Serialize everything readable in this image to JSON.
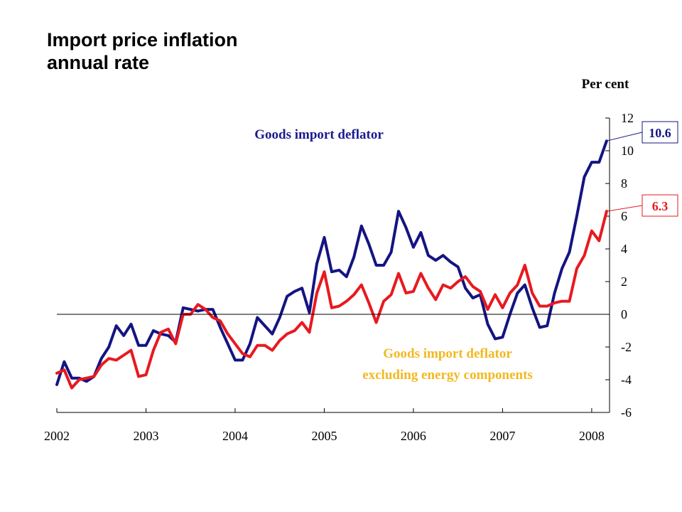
{
  "title_line1": "Import price inflation",
  "title_line2": "annual rate",
  "chart_data": {
    "type": "line",
    "unit_label": "Per cent",
    "y_axis": {
      "min": -6,
      "max": 12,
      "ticks": [
        -6,
        -4,
        -2,
        0,
        2,
        4,
        6,
        8,
        10,
        12
      ],
      "tick_labels": [
        "-6",
        "-4",
        "-2",
        "0",
        "2",
        "4",
        "6",
        "8",
        "10",
        "12"
      ]
    },
    "x_axis": {
      "min": 2002,
      "max": 2008.2,
      "ticks": [
        2002,
        2003,
        2004,
        2005,
        2006,
        2007,
        2008
      ],
      "tick_labels": [
        "2002",
        "2003",
        "2004",
        "2005",
        "2006",
        "2007",
        "2008"
      ]
    },
    "series": [
      {
        "name": "Goods import deflator",
        "color": "#141482",
        "x": [
          2002.0,
          2002.083,
          2002.167,
          2002.25,
          2002.333,
          2002.417,
          2002.5,
          2002.583,
          2002.667,
          2002.75,
          2002.833,
          2002.917,
          2003.0,
          2003.083,
          2003.167,
          2003.25,
          2003.333,
          2003.417,
          2003.5,
          2003.583,
          2003.667,
          2003.75,
          2003.833,
          2003.917,
          2004.0,
          2004.083,
          2004.167,
          2004.25,
          2004.333,
          2004.417,
          2004.5,
          2004.583,
          2004.667,
          2004.75,
          2004.833,
          2004.917,
          2005.0,
          2005.083,
          2005.167,
          2005.25,
          2005.333,
          2005.417,
          2005.5,
          2005.583,
          2005.667,
          2005.75,
          2005.833,
          2005.917,
          2006.0,
          2006.083,
          2006.167,
          2006.25,
          2006.333,
          2006.417,
          2006.5,
          2006.583,
          2006.667,
          2006.75,
          2006.833,
          2006.917,
          2007.0,
          2007.083,
          2007.167,
          2007.25,
          2007.333,
          2007.417,
          2007.5,
          2007.583,
          2007.667,
          2007.75,
          2007.833,
          2007.917,
          2008.0,
          2008.083,
          2008.167
        ],
        "values": [
          -4.3,
          -2.9,
          -3.9,
          -3.9,
          -4.1,
          -3.8,
          -2.7,
          -2.0,
          -0.7,
          -1.3,
          -0.6,
          -1.9,
          -1.9,
          -1.0,
          -1.2,
          -1.3,
          -1.7,
          0.4,
          0.3,
          0.2,
          0.3,
          0.3,
          -0.8,
          -1.8,
          -2.8,
          -2.8,
          -1.8,
          -0.2,
          -0.7,
          -1.2,
          -0.2,
          1.1,
          1.4,
          1.6,
          0.1,
          3.1,
          4.7,
          2.6,
          2.7,
          2.3,
          3.5,
          5.4,
          4.3,
          3.0,
          3.0,
          3.8,
          6.3,
          5.3,
          4.1,
          5.0,
          3.6,
          3.3,
          3.6,
          3.2,
          2.9,
          1.6,
          1.0,
          1.2,
          -0.6,
          -1.5,
          -1.4,
          0.0,
          1.3,
          1.8,
          0.4,
          -0.8,
          -0.7,
          1.3,
          2.8,
          3.8,
          6.0,
          8.4,
          9.3,
          9.3,
          10.6
        ]
      },
      {
        "name": "Goods import deflator excluding energy components",
        "color": "#e8191f",
        "x": [
          2002.0,
          2002.083,
          2002.167,
          2002.25,
          2002.333,
          2002.417,
          2002.5,
          2002.583,
          2002.667,
          2002.75,
          2002.833,
          2002.917,
          2003.0,
          2003.083,
          2003.167,
          2003.25,
          2003.333,
          2003.417,
          2003.5,
          2003.583,
          2003.667,
          2003.75,
          2003.833,
          2003.917,
          2004.0,
          2004.083,
          2004.167,
          2004.25,
          2004.333,
          2004.417,
          2004.5,
          2004.583,
          2004.667,
          2004.75,
          2004.833,
          2004.917,
          2005.0,
          2005.083,
          2005.167,
          2005.25,
          2005.333,
          2005.417,
          2005.5,
          2005.583,
          2005.667,
          2005.75,
          2005.833,
          2005.917,
          2006.0,
          2006.083,
          2006.167,
          2006.25,
          2006.333,
          2006.417,
          2006.5,
          2006.583,
          2006.667,
          2006.75,
          2006.833,
          2006.917,
          2007.0,
          2007.083,
          2007.167,
          2007.25,
          2007.333,
          2007.417,
          2007.5,
          2007.583,
          2007.667,
          2007.75,
          2007.833,
          2007.917,
          2008.0,
          2008.083,
          2008.167
        ],
        "values": [
          -3.6,
          -3.4,
          -4.5,
          -4.0,
          -3.9,
          -3.8,
          -3.1,
          -2.7,
          -2.8,
          -2.5,
          -2.2,
          -3.8,
          -3.7,
          -2.2,
          -1.1,
          -0.9,
          -1.8,
          0.0,
          0.0,
          0.6,
          0.3,
          -0.2,
          -0.4,
          -1.2,
          -1.8,
          -2.4,
          -2.6,
          -1.9,
          -1.9,
          -2.2,
          -1.6,
          -1.2,
          -1.0,
          -0.5,
          -1.1,
          1.3,
          2.6,
          0.4,
          0.5,
          0.8,
          1.2,
          1.8,
          0.7,
          -0.5,
          0.8,
          1.2,
          2.5,
          1.3,
          1.4,
          2.5,
          1.6,
          0.9,
          1.8,
          1.6,
          2.0,
          2.3,
          1.7,
          1.4,
          0.3,
          1.2,
          0.4,
          1.3,
          1.8,
          3.0,
          1.3,
          0.5,
          0.5,
          0.7,
          0.8,
          0.8,
          2.8,
          3.6,
          5.1,
          4.5,
          6.3
        ]
      }
    ],
    "annotations": {
      "blue_label": "Goods import deflator",
      "gold_label_line1": "Goods import deflator",
      "gold_label_line2": "excluding energy components",
      "blue_end_value": "10.6",
      "red_end_value": "6.3"
    },
    "grid": false
  }
}
